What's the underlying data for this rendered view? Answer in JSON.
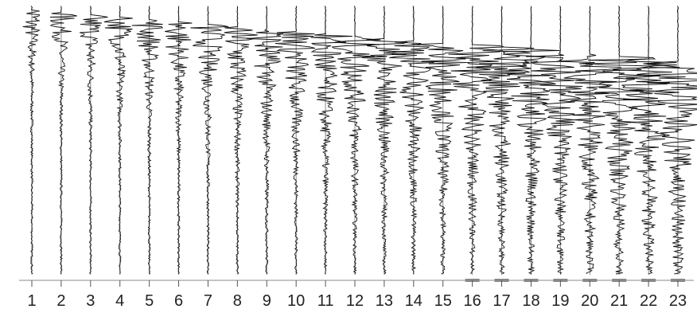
{
  "chart_data": {
    "type": "line",
    "title": "",
    "xlabel": "",
    "ylabel": "",
    "categories": [
      "1",
      "2",
      "3",
      "4",
      "5",
      "6",
      "7",
      "8",
      "9",
      "10",
      "11",
      "12",
      "13",
      "14",
      "15",
      "16",
      "17",
      "18",
      "19",
      "20",
      "21",
      "22",
      "23"
    ],
    "grid": false,
    "legend": "none",
    "trace_color": "#111111",
    "baseline_color": "#888888",
    "marked_traces": [
      "16",
      "17",
      "18",
      "19",
      "20",
      "21",
      "22",
      "23"
    ]
  }
}
